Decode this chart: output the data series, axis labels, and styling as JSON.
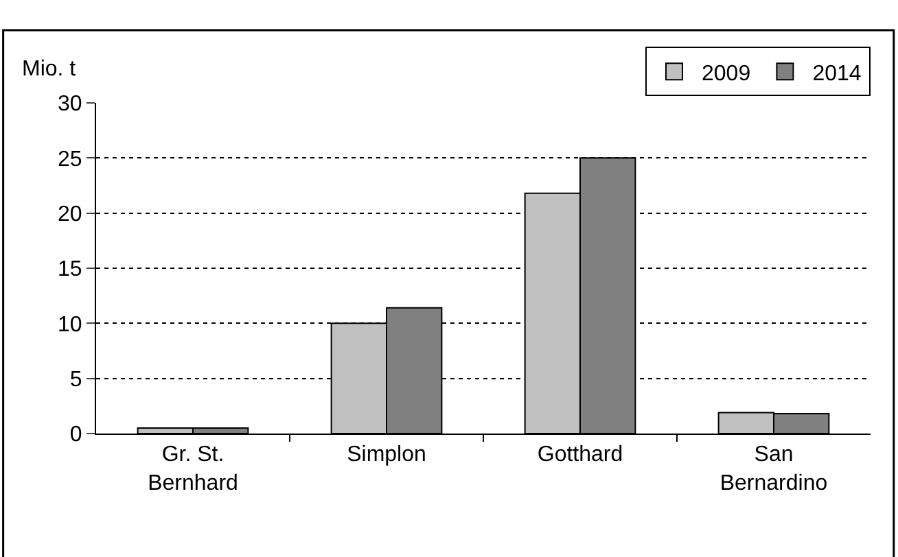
{
  "chart_data": {
    "type": "bar",
    "ylabel": "Mio. t",
    "categories": [
      "Gr. St.\nBernhard",
      "Simplon",
      "Gotthard",
      "San\nBernardino"
    ],
    "series": [
      {
        "name": "2009",
        "color": "#c0c0c0",
        "values": [
          0.5,
          10.0,
          21.8,
          1.9
        ]
      },
      {
        "name": "2014",
        "color": "#808080",
        "values": [
          0.5,
          11.4,
          25.0,
          1.8
        ]
      }
    ],
    "ylim": [
      0,
      30
    ],
    "yticks": [
      0,
      5,
      10,
      15,
      20,
      25,
      30
    ],
    "grid": "y",
    "legend": "top right"
  }
}
